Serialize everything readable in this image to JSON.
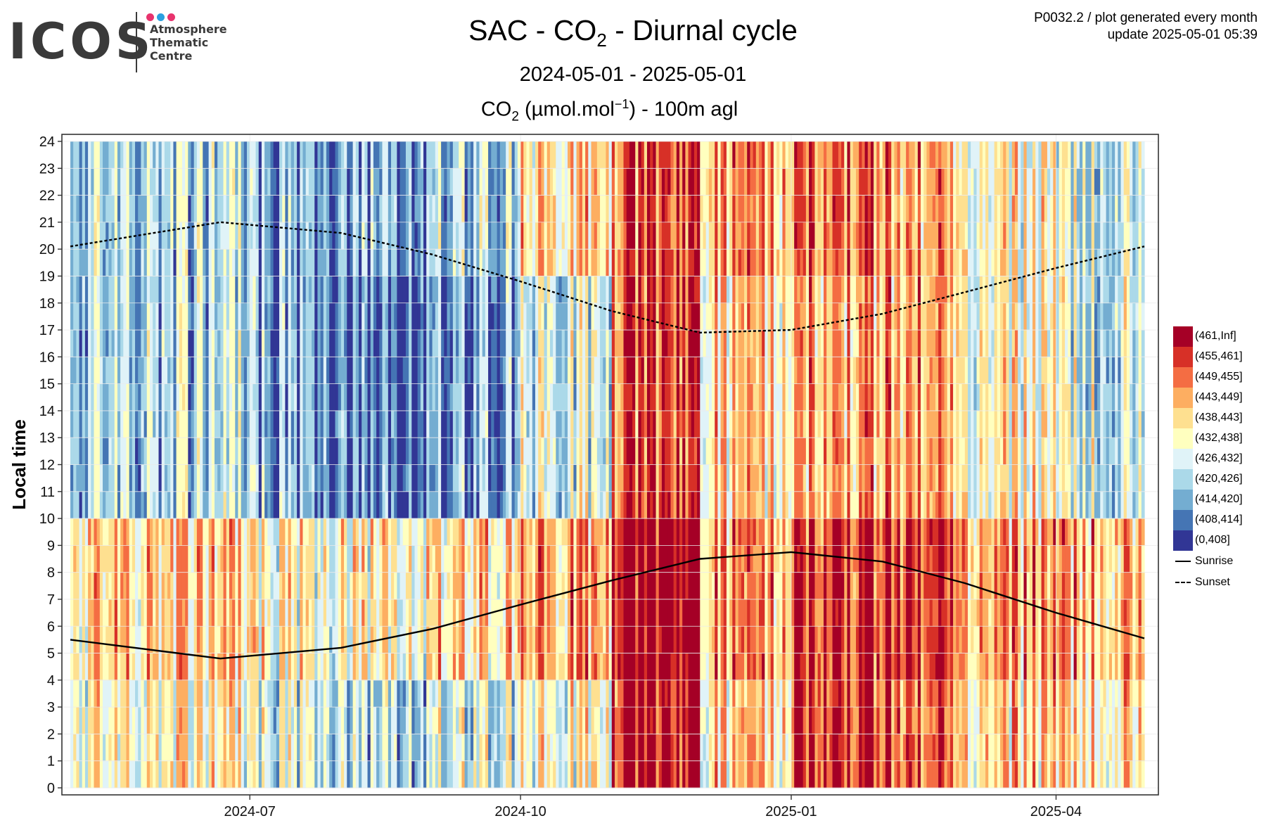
{
  "header": {
    "logo_word": "ICOS",
    "logo_lines": [
      "Atmosphere",
      "Thematic",
      "Centre"
    ],
    "logo_dot_colors": [
      "#e8336d",
      "#2aa0e0",
      "#e8336d"
    ],
    "meta_line1": "P0032.2 / plot generated every month",
    "meta_line2": "update  2025-05-01 05:39",
    "title_main": "SAC - CO",
    "title_sub": "2",
    "title_rest": " - Diurnal cycle",
    "date_range": "2024-05-01 - 2025-05-01",
    "var_co": "CO",
    "var_co_sub": "2",
    "var_unit_pre": " (",
    "var_mu": "µ",
    "var_unit": "mol.mol",
    "var_exp": "−1",
    "var_suffix": ") - 100m agl"
  },
  "chart_data": {
    "type": "heatmap",
    "x_range": [
      "2024-05-01",
      "2025-05-01"
    ],
    "y_range": [
      0,
      24
    ],
    "ylabel": "Local time",
    "xlabel": "",
    "x_ticks": [
      {
        "date": "2024-07-01",
        "label": "2024-07"
      },
      {
        "date": "2024-10-01",
        "label": "2024-10"
      },
      {
        "date": "2025-01-01",
        "label": "2025-01"
      },
      {
        "date": "2025-04-01",
        "label": "2025-04"
      }
    ],
    "y_ticks": [
      0,
      1,
      2,
      3,
      4,
      5,
      6,
      7,
      8,
      9,
      10,
      11,
      12,
      13,
      14,
      15,
      16,
      17,
      18,
      19,
      20,
      21,
      22,
      23,
      24
    ],
    "grid": true,
    "bins": [
      {
        "label": "(461,Inf]",
        "color": "#a50026"
      },
      {
        "label": "(455,461]",
        "color": "#d73027"
      },
      {
        "label": "(449,455]",
        "color": "#f46d43"
      },
      {
        "label": "(443,449]",
        "color": "#fdae61"
      },
      {
        "label": "(438,443]",
        "color": "#fee090"
      },
      {
        "label": "(432,438]",
        "color": "#ffffbf"
      },
      {
        "label": "(426,432]",
        "color": "#e0f3f8"
      },
      {
        "label": "(420,426]",
        "color": "#abd9e9"
      },
      {
        "label": "(414,420]",
        "color": "#74add1"
      },
      {
        "label": "(408,414]",
        "color": "#4575b4"
      },
      {
        "label": "(0,408]",
        "color": "#313695"
      }
    ],
    "sunrise": {
      "label": "Sunrise",
      "points": [
        [
          "2024-05-01",
          5.5
        ],
        [
          "2024-06-21",
          4.8
        ],
        [
          "2024-08-01",
          5.2
        ],
        [
          "2024-09-01",
          5.9
        ],
        [
          "2024-10-01",
          6.8
        ],
        [
          "2024-11-01",
          7.7
        ],
        [
          "2024-12-01",
          8.5
        ],
        [
          "2025-01-01",
          8.75
        ],
        [
          "2025-02-01",
          8.4
        ],
        [
          "2025-03-01",
          7.6
        ],
        [
          "2025-04-01",
          6.5
        ],
        [
          "2025-05-01",
          5.55
        ]
      ]
    },
    "sunset": {
      "label": "Sunset",
      "points": [
        [
          "2024-05-01",
          20.1
        ],
        [
          "2024-06-21",
          21.0
        ],
        [
          "2024-08-01",
          20.6
        ],
        [
          "2024-09-01",
          19.8
        ],
        [
          "2024-10-01",
          18.8
        ],
        [
          "2024-11-01",
          17.7
        ],
        [
          "2024-12-01",
          16.9
        ],
        [
          "2025-01-01",
          17.0
        ],
        [
          "2025-02-01",
          17.6
        ],
        [
          "2025-03-01",
          18.4
        ],
        [
          "2025-04-01",
          19.3
        ],
        [
          "2025-05-01",
          20.1
        ]
      ]
    },
    "monthly_profile_bins": [
      {
        "month": "2024-05",
        "night": 5,
        "morning": 4,
        "day": 7,
        "evening": 7
      },
      {
        "month": "2024-06",
        "night": 5,
        "morning": 4,
        "day": 7,
        "evening": 7
      },
      {
        "month": "2024-07",
        "night": 6,
        "morning": 5,
        "day": 8,
        "evening": 8
      },
      {
        "month": "2024-08",
        "night": 7,
        "morning": 5,
        "day": 9,
        "evening": 8
      },
      {
        "month": "2024-09",
        "night": 6,
        "morning": 4,
        "day": 8,
        "evening": 7
      },
      {
        "month": "2024-10",
        "night": 5,
        "morning": 3,
        "day": 6,
        "evening": 4
      },
      {
        "month": "2024-11",
        "night": 1,
        "morning": 0,
        "day": 2,
        "evening": 2
      },
      {
        "month": "2024-12",
        "night": 4,
        "morning": 3,
        "day": 4,
        "evening": 3
      },
      {
        "month": "2025-01",
        "night": 1,
        "morning": 1,
        "day": 3,
        "evening": 2
      },
      {
        "month": "2025-02",
        "night": 2,
        "morning": 1,
        "day": 3,
        "evening": 3
      },
      {
        "month": "2025-03",
        "night": 4,
        "morning": 3,
        "day": 5,
        "evening": 5
      },
      {
        "month": "2025-04",
        "night": 4,
        "morning": 3,
        "day": 6,
        "evening": 6
      }
    ]
  }
}
